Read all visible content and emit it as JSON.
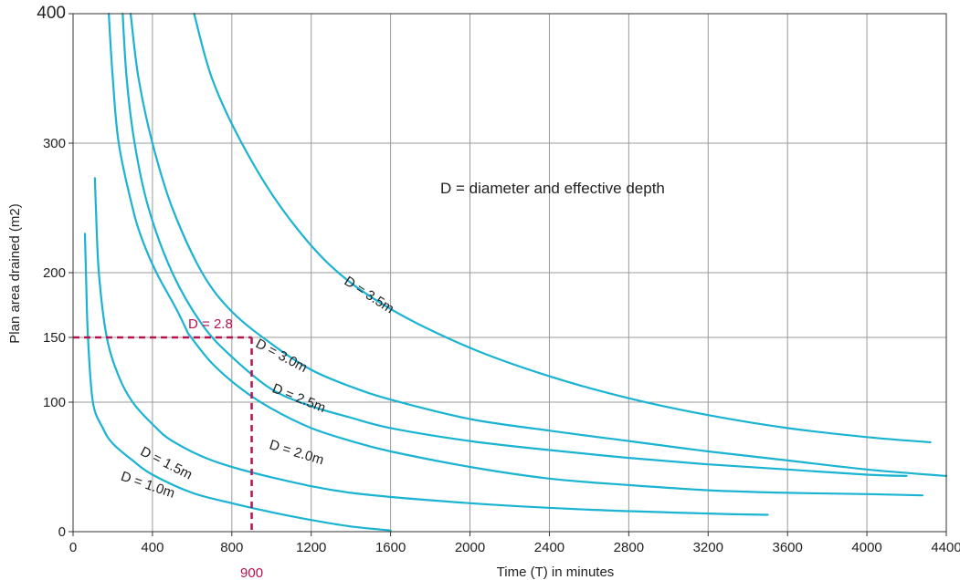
{
  "chart_data": {
    "type": "line",
    "xlabel": "Time (T) in minutes",
    "ylabel": "Plan area drained (m2)",
    "xlim": [
      0,
      4400
    ],
    "ylim": [
      0,
      400
    ],
    "xticks": [
      0,
      400,
      800,
      1200,
      1600,
      2000,
      2400,
      2800,
      3200,
      3600,
      4000,
      4400
    ],
    "yticks": [
      0,
      100,
      150,
      200,
      300,
      400
    ],
    "grid": true,
    "note": "D = diameter and effective depth",
    "colors": {
      "curve": "#1ab3d1",
      "annotation": "#b5134f"
    },
    "series": [
      {
        "name": "D = 1.0m",
        "points": [
          [
            60,
            230
          ],
          [
            65,
            200
          ],
          [
            75,
            150
          ],
          [
            100,
            100
          ],
          [
            150,
            80
          ],
          [
            200,
            68
          ],
          [
            300,
            55
          ],
          [
            400,
            44
          ],
          [
            600,
            30
          ],
          [
            800,
            22
          ],
          [
            1000,
            15
          ],
          [
            1200,
            9
          ],
          [
            1400,
            4
          ],
          [
            1600,
            1
          ]
        ]
      },
      {
        "name": "D = 1.5m",
        "points": [
          [
            110,
            273
          ],
          [
            115,
            250
          ],
          [
            130,
            200
          ],
          [
            170,
            150
          ],
          [
            230,
            120
          ],
          [
            300,
            100
          ],
          [
            400,
            83
          ],
          [
            500,
            70
          ],
          [
            700,
            55
          ],
          [
            1000,
            42
          ],
          [
            1400,
            30
          ],
          [
            2000,
            22
          ],
          [
            2600,
            17
          ],
          [
            3200,
            14
          ],
          [
            3500,
            13
          ]
        ]
      },
      {
        "name": "D = 2.0m",
        "points": [
          [
            180,
            400
          ],
          [
            200,
            350
          ],
          [
            230,
            300
          ],
          [
            300,
            250
          ],
          [
            350,
            225
          ],
          [
            420,
            200
          ],
          [
            520,
            172
          ],
          [
            580,
            153
          ]
        ]
      },
      {
        "name": "D = 2.0m",
        "points": [
          [
            580,
            153
          ],
          [
            700,
            130
          ],
          [
            850,
            110
          ],
          [
            1000,
            95
          ],
          [
            1200,
            80
          ],
          [
            1400,
            70
          ],
          [
            1600,
            62
          ],
          [
            2000,
            50
          ],
          [
            2400,
            41
          ],
          [
            2800,
            36
          ],
          [
            3200,
            32
          ],
          [
            3600,
            30
          ],
          [
            4000,
            29
          ],
          [
            4280,
            28
          ]
        ]
      },
      {
        "name": "D = 2.5m",
        "points": [
          [
            250,
            400
          ],
          [
            270,
            350
          ],
          [
            310,
            300
          ],
          [
            380,
            250
          ],
          [
            500,
            200
          ],
          [
            650,
            160
          ],
          [
            800,
            135
          ],
          [
            1000,
            110
          ],
          [
            1200,
            97
          ],
          [
            1400,
            88
          ],
          [
            1600,
            80
          ],
          [
            2000,
            70
          ],
          [
            2400,
            63
          ],
          [
            2800,
            57
          ],
          [
            3200,
            52
          ],
          [
            3600,
            48
          ],
          [
            4000,
            44
          ],
          [
            4200,
            43
          ]
        ]
      },
      {
        "name": "D = 3.0m",
        "points": [
          [
            290,
            400
          ],
          [
            330,
            350
          ],
          [
            400,
            300
          ],
          [
            500,
            250
          ],
          [
            650,
            200
          ],
          [
            800,
            170
          ],
          [
            1000,
            145
          ],
          [
            1200,
            125
          ],
          [
            1400,
            112
          ],
          [
            1600,
            102
          ],
          [
            2000,
            87
          ],
          [
            2400,
            78
          ],
          [
            2800,
            70
          ],
          [
            3200,
            62
          ],
          [
            3600,
            55
          ],
          [
            4000,
            48
          ],
          [
            4400,
            43
          ]
        ]
      },
      {
        "name": "D = 3.5m",
        "points": [
          [
            610,
            400
          ],
          [
            700,
            350
          ],
          [
            850,
            300
          ],
          [
            1050,
            250
          ],
          [
            1300,
            205
          ],
          [
            1600,
            172
          ],
          [
            2000,
            142
          ],
          [
            2400,
            120
          ],
          [
            2800,
            103
          ],
          [
            3200,
            90
          ],
          [
            3600,
            80
          ],
          [
            4000,
            73
          ],
          [
            4320,
            69
          ]
        ]
      }
    ],
    "curve_labels": [
      {
        "text": "D = 1.0m",
        "x": 370,
        "y": 33,
        "angle": 19
      },
      {
        "text": "D = 1.5m",
        "x": 460,
        "y": 50,
        "angle": 27
      },
      {
        "text": "D = 2.0m",
        "x": 1120,
        "y": 58,
        "angle": 17
      },
      {
        "text": "D = 2.5m",
        "x": 1130,
        "y": 100,
        "angle": 22
      },
      {
        "text": "D = 3.0m",
        "x": 1040,
        "y": 133,
        "angle": 28
      },
      {
        "text": "D = 3.5m",
        "x": 1480,
        "y": 180,
        "angle": 33
      }
    ],
    "annotation": {
      "label": "D = 2.8",
      "x": 900,
      "y": 150,
      "x_label": "900"
    }
  }
}
